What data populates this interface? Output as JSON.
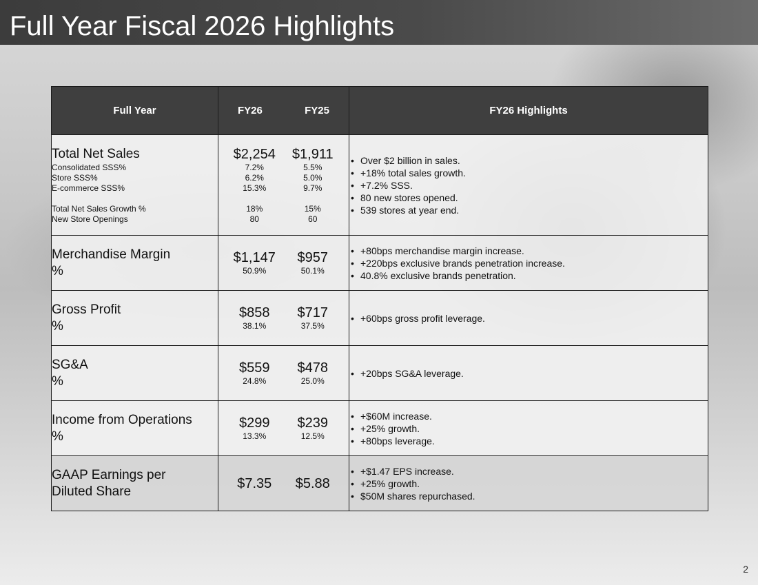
{
  "slide": {
    "title": "Full Year Fiscal 2026 Highlights",
    "page_number": "2"
  },
  "table": {
    "headers": {
      "full_year": "Full Year",
      "fy26": "FY26",
      "fy25": "FY25",
      "highlights": "FY26 Highlights"
    },
    "net_sales": {
      "label": "Total Net Sales",
      "fy26": "$2,254",
      "fy25": "$1,911",
      "sub_labels": [
        "Consolidated SSS%",
        "Store SSS%",
        "E-commerce SSS%",
        "Total Net Sales Growth %",
        "New Store Openings"
      ],
      "fy26_sub": [
        "7.2%",
        "6.2%",
        "15.3%",
        "18%",
        "80"
      ],
      "fy25_sub": [
        "5.5%",
        "5.0%",
        "9.7%",
        "15%",
        "60"
      ],
      "highlights": [
        "Over $2 billion in sales.",
        "+18% total sales growth.",
        "+7.2% SSS.",
        "80 new stores opened.",
        "539 stores at year end."
      ]
    },
    "merch_margin": {
      "label": "Merchandise Margin",
      "pct_label": "%",
      "fy26": "$1,147",
      "fy26_pct": "50.9%",
      "fy25": "$957",
      "fy25_pct": "50.1%",
      "highlights": [
        "+80bps merchandise margin increase.",
        "+220bps exclusive brands penetration increase.",
        "40.8% exclusive brands penetration."
      ]
    },
    "gross_profit": {
      "label": "Gross Profit",
      "pct_label": "%",
      "fy26": "$858",
      "fy26_pct": "38.1%",
      "fy25": "$717",
      "fy25_pct": "37.5%",
      "highlights": [
        "+60bps gross profit leverage."
      ]
    },
    "sga": {
      "label": "SG&A",
      "pct_label": "%",
      "fy26": "$559",
      "fy26_pct": "24.8%",
      "fy25": "$478",
      "fy25_pct": "25.0%",
      "highlights": [
        "+20bps SG&A leverage."
      ]
    },
    "income_ops": {
      "label": "Income from Operations",
      "pct_label": "%",
      "fy26": "$299",
      "fy26_pct": "13.3%",
      "fy25": "$239",
      "fy25_pct": "12.5%",
      "highlights": [
        "+$60M increase.",
        "+25% growth.",
        "+80bps leverage."
      ]
    },
    "gaap_eps": {
      "label_line1": "GAAP Earnings per",
      "label_line2": "Diluted Share",
      "fy26": "$7.35",
      "fy25": "$5.88",
      "highlights": [
        "+$1.47 EPS increase.",
        "+25% growth.",
        "$50M shares repurchased."
      ]
    }
  }
}
